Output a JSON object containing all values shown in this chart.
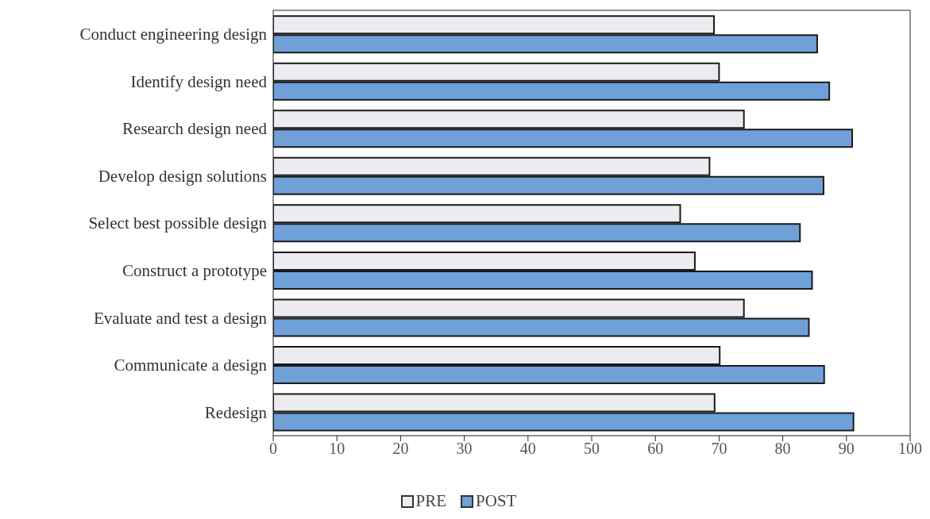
{
  "chart_data": {
    "type": "bar",
    "orientation": "horizontal",
    "categories": [
      "Conduct engineering design",
      "Identify design need",
      "Research design need",
      "Develop design solutions",
      "Select best possible design",
      "Construct a prototype",
      "Evaluate and test a design",
      "Communicate a design",
      "Redesign"
    ],
    "series": [
      {
        "name": "PRE",
        "color": "#ececf0",
        "values": [
          69.2,
          70.0,
          73.9,
          68.5,
          63.9,
          66.2,
          73.9,
          70.1,
          69.3
        ]
      },
      {
        "name": "POST",
        "color": "#6fa0d8",
        "values": [
          85.4,
          87.3,
          90.9,
          86.4,
          82.7,
          84.6,
          84.1,
          86.5,
          91.1
        ]
      }
    ],
    "xlim": [
      0,
      100
    ],
    "xticks": [
      0,
      10,
      20,
      30,
      40,
      50,
      60,
      70,
      80,
      90,
      100
    ],
    "legend": "bottom"
  }
}
